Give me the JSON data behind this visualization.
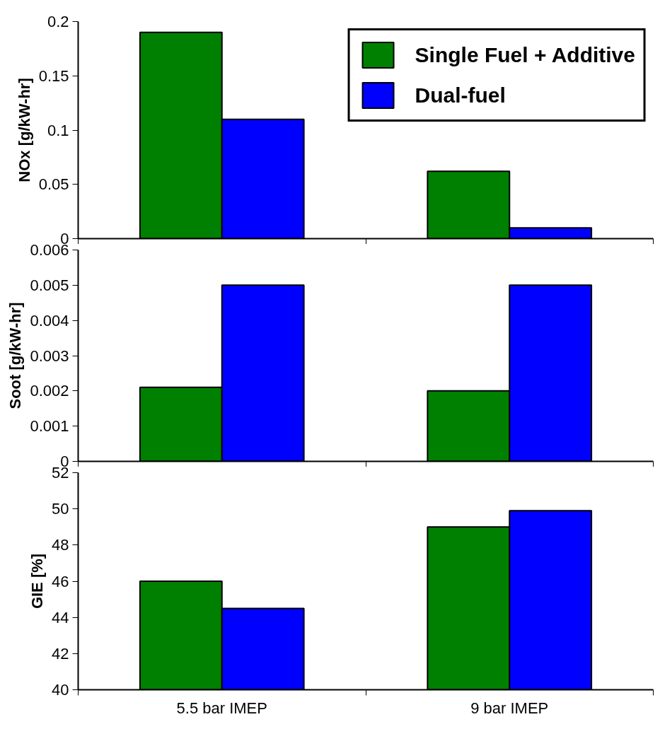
{
  "chart_data": [
    {
      "type": "bar",
      "categories": [
        null,
        null
      ],
      "ylabel": "NOx [g/kW-hr]",
      "ylim": [
        0,
        0.2
      ],
      "yticks": [
        0,
        0.05,
        0.1,
        0.15,
        0.2
      ],
      "tick_labels": "y",
      "grid": false,
      "legend": "top right",
      "series": [
        {
          "name": "Single Fuel + Additive",
          "color": "#008000",
          "values": [
            0.19,
            0.062
          ]
        },
        {
          "name": "Dual-fuel",
          "color": "#0000ff",
          "values": [
            0.11,
            0.01
          ]
        }
      ]
    },
    {
      "type": "bar",
      "categories": [
        null,
        null
      ],
      "ylabel": "Soot [g/kW-hr]",
      "ylim": [
        0,
        0.006
      ],
      "yticks": [
        0,
        0.001,
        0.002,
        0.003,
        0.004,
        0.005,
        0.006
      ],
      "tick_labels": "y",
      "grid": false,
      "series": [
        {
          "color": "#008000",
          "values": [
            0.0021,
            0.002
          ]
        },
        {
          "color": "#0000ff",
          "values": [
            0.005,
            0.005
          ]
        }
      ]
    },
    {
      "type": "bar",
      "categories": [
        "5.5 bar IMEP",
        "9 bar IMEP"
      ],
      "ylabel": "GIE [%]",
      "ylim": [
        40,
        52
      ],
      "yticks": [
        40,
        42,
        44,
        46,
        48,
        50,
        52
      ],
      "grid": false,
      "series": [
        {
          "color": "#008000",
          "values": [
            46,
            49
          ]
        },
        {
          "color": "#0000ff",
          "values": [
            44.5,
            49.9
          ]
        }
      ]
    }
  ]
}
